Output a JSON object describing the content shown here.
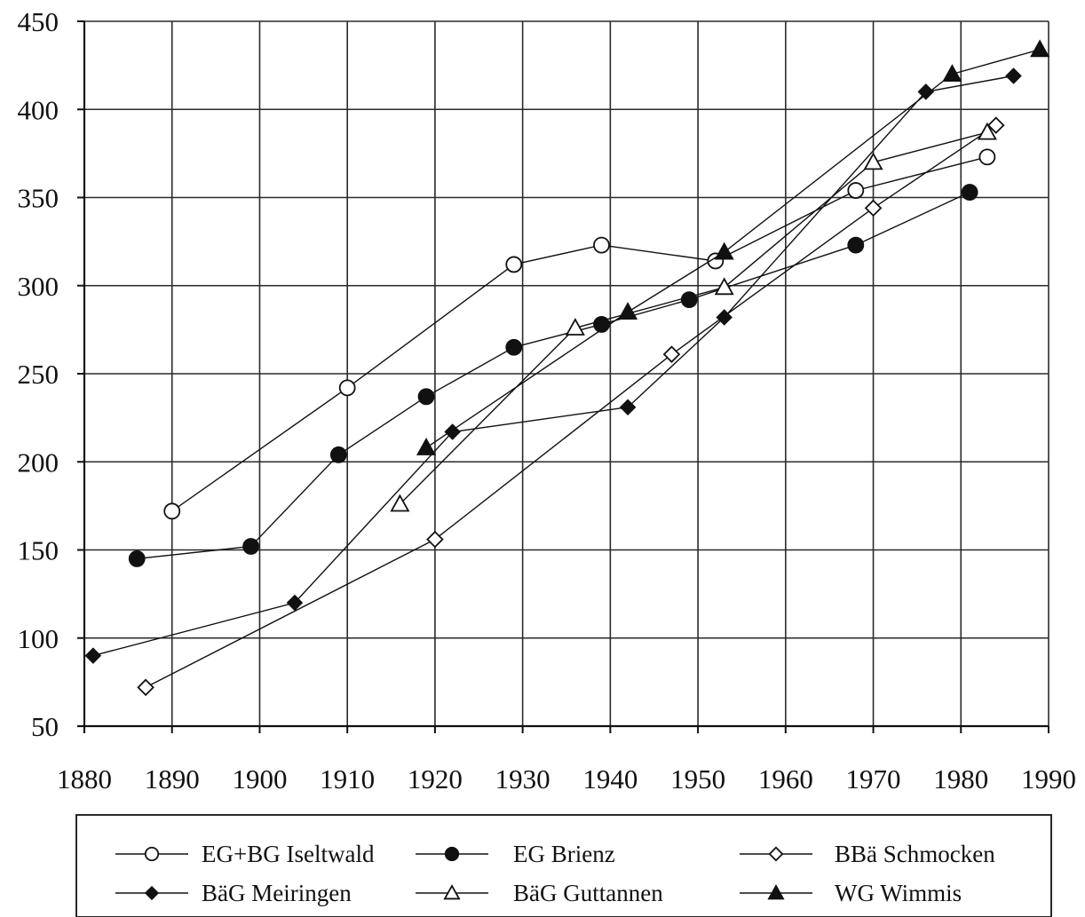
{
  "chart_data": {
    "type": "line",
    "title": "",
    "xlabel": "",
    "ylabel": "",
    "xlim": [
      1880,
      1990
    ],
    "ylim": [
      50,
      450
    ],
    "x_ticks": [
      1880,
      1890,
      1900,
      1910,
      1920,
      1930,
      1940,
      1950,
      1960,
      1970,
      1980,
      1990
    ],
    "y_ticks": [
      50,
      100,
      150,
      200,
      250,
      300,
      350,
      400,
      450
    ],
    "grid": true,
    "legend_position": "bottom",
    "series": [
      {
        "name": "EG+BG Iseltwald",
        "marker": "open-circle",
        "color": "#111111",
        "points": [
          [
            1890,
            172
          ],
          [
            1910,
            242
          ],
          [
            1929,
            312
          ],
          [
            1939,
            323
          ],
          [
            1952,
            314
          ],
          [
            1968,
            354
          ],
          [
            1983,
            373
          ]
        ]
      },
      {
        "name": "EG Brienz",
        "marker": "filled-circle",
        "color": "#111111",
        "points": [
          [
            1886,
            145
          ],
          [
            1899,
            152
          ],
          [
            1909,
            204
          ],
          [
            1919,
            237
          ],
          [
            1929,
            265
          ],
          [
            1939,
            278
          ],
          [
            1949,
            292
          ],
          [
            1968,
            323
          ],
          [
            1981,
            353
          ]
        ]
      },
      {
        "name": "BBä  Schmocken",
        "marker": "open-diamond",
        "color": "#111111",
        "points": [
          [
            1887,
            72
          ],
          [
            1920,
            156
          ],
          [
            1947,
            261
          ],
          [
            1970,
            344
          ],
          [
            1984,
            391
          ]
        ]
      },
      {
        "name": "BäG Meiringen",
        "marker": "filled-diamond",
        "color": "#111111",
        "points": [
          [
            1881,
            90
          ],
          [
            1904,
            120
          ],
          [
            1922,
            217
          ],
          [
            1942,
            231
          ],
          [
            1953,
            282
          ],
          [
            1976,
            410
          ],
          [
            1986,
            419
          ]
        ]
      },
      {
        "name": "BäG Guttannen",
        "marker": "open-triangle",
        "color": "#111111",
        "points": [
          [
            1916,
            176
          ],
          [
            1936,
            276
          ],
          [
            1953,
            299
          ],
          [
            1970,
            370
          ],
          [
            1983,
            387
          ]
        ]
      },
      {
        "name": "WG Wimmis",
        "marker": "filled-triangle",
        "color": "#111111",
        "points": [
          [
            1919,
            208
          ],
          [
            1942,
            285
          ],
          [
            1953,
            319
          ],
          [
            1979,
            420
          ],
          [
            1989,
            434
          ]
        ]
      }
    ]
  }
}
